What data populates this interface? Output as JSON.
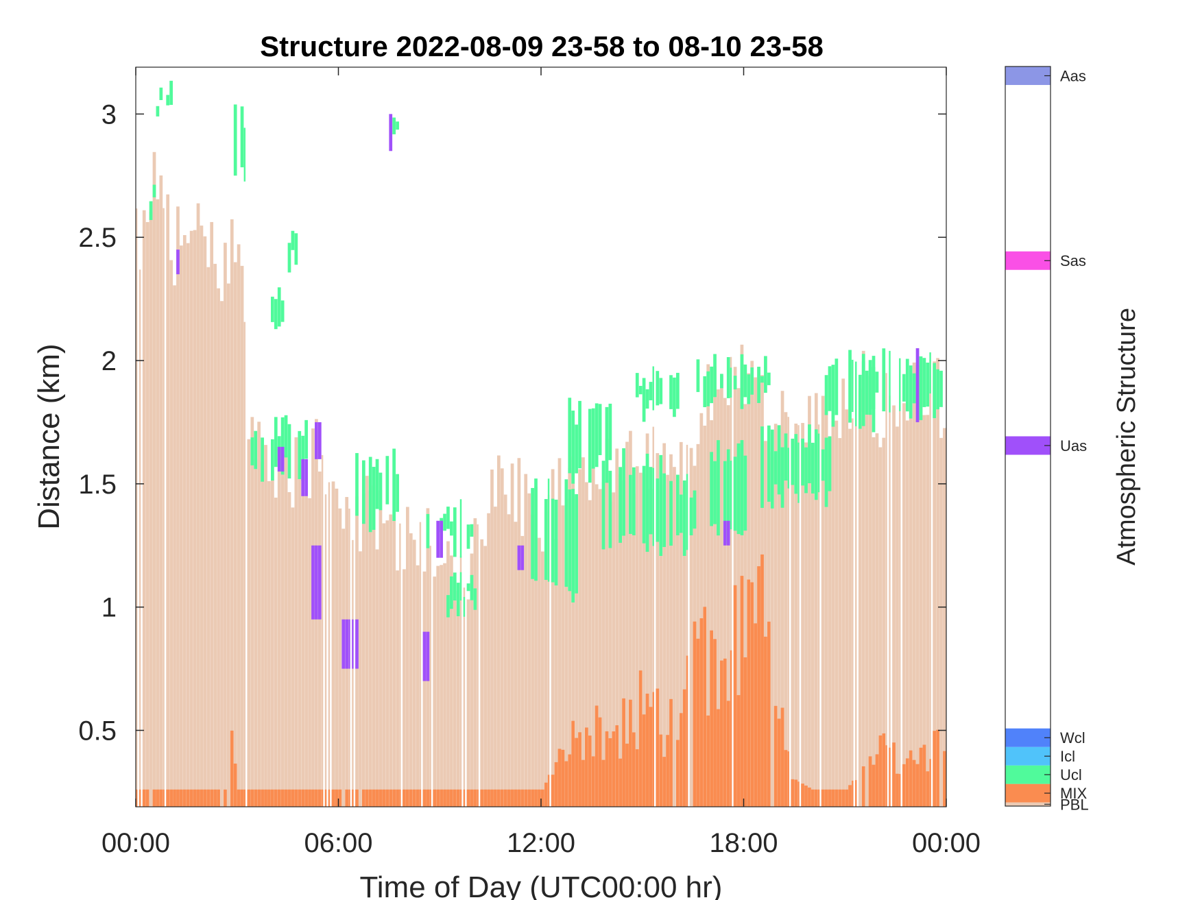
{
  "chart_data": {
    "type": "heatmap",
    "title": "Structure 2022-08-09 23-58 to 08-10 23-58",
    "xlabel": "Time of Day (UTC00:00 hr)",
    "ylabel": "Distance (km)",
    "colorbar_label": "Atmospheric Structure",
    "xlim_hours": [
      0,
      24
    ],
    "ylim_km": [
      0.19,
      3.19
    ],
    "x_ticks": [
      {
        "value": 0,
        "label": "00:00"
      },
      {
        "value": 6,
        "label": "06:00"
      },
      {
        "value": 12,
        "label": "12:00"
      },
      {
        "value": 18,
        "label": "18:00"
      },
      {
        "value": 24,
        "label": "00:00"
      }
    ],
    "y_ticks": [
      {
        "value": 0.5,
        "label": "0.5"
      },
      {
        "value": 1,
        "label": "1"
      },
      {
        "value": 1.5,
        "label": "1.5"
      },
      {
        "value": 2,
        "label": "2"
      },
      {
        "value": 2.5,
        "label": "2.5"
      },
      {
        "value": 3,
        "label": "3"
      }
    ],
    "categories": [
      {
        "label": "PBL",
        "color": "#ebcab4"
      },
      {
        "label": "MIX",
        "color": "#fa8c50"
      },
      {
        "label": "Ucl",
        "color": "#50fa9b"
      },
      {
        "label": "Icl",
        "color": "#50c3fa"
      },
      {
        "label": "Wcl",
        "color": "#5082fa"
      },
      {
        "label": "Uas",
        "color": "#a050fa"
      },
      {
        "label": "Sas",
        "color": "#fa50e6"
      },
      {
        "label": "Aas",
        "color": "#8c96e6"
      }
    ],
    "colorbar_scale": [
      0,
      40
    ],
    "colorbar_bands": [
      {
        "label": "PBL",
        "from": 0,
        "to": 0.2
      },
      {
        "label": "MIX",
        "from": 0.2,
        "to": 1.2
      },
      {
        "label": "Ucl",
        "from": 1.2,
        "to": 2.2
      },
      {
        "label": "Icl",
        "from": 2.2,
        "to": 3.2
      },
      {
        "label": "Wcl",
        "from": 3.2,
        "to": 4.2
      },
      {
        "label": "Uas",
        "from": 19,
        "to": 20
      },
      {
        "label": "Sas",
        "from": 29,
        "to": 30
      },
      {
        "label": "Aas",
        "from": 39,
        "to": 40
      }
    ],
    "pbl_top_km": [
      [
        0,
        2.5
      ],
      [
        0.5,
        2.7
      ],
      [
        1.0,
        2.45
      ],
      [
        1.5,
        2.5
      ],
      [
        2.0,
        2.5
      ],
      [
        2.5,
        2.4
      ],
      [
        3.0,
        2.55
      ],
      [
        3.3,
        1.75
      ],
      [
        3.7,
        1.65
      ],
      [
        4.2,
        1.6
      ],
      [
        4.7,
        1.55
      ],
      [
        5.2,
        1.62
      ],
      [
        5.6,
        1.55
      ],
      [
        6.0,
        1.5
      ],
      [
        6.5,
        1.35
      ],
      [
        7.0,
        1.4
      ],
      [
        7.5,
        1.32
      ],
      [
        8.0,
        1.28
      ],
      [
        8.5,
        1.25
      ],
      [
        9.0,
        1.2
      ],
      [
        9.5,
        1.1
      ],
      [
        10.0,
        1.2
      ],
      [
        10.5,
        1.45
      ],
      [
        11.0,
        1.55
      ],
      [
        11.5,
        1.4
      ],
      [
        12.0,
        1.3
      ],
      [
        12.5,
        1.45
      ],
      [
        13.0,
        1.55
      ],
      [
        13.5,
        1.62
      ],
      [
        14.0,
        1.6
      ],
      [
        14.5,
        1.55
      ],
      [
        15.0,
        1.65
      ],
      [
        15.5,
        1.55
      ],
      [
        16.0,
        1.5
      ],
      [
        16.5,
        1.7
      ],
      [
        17.0,
        1.85
      ],
      [
        17.5,
        1.95
      ],
      [
        18.0,
        1.9
      ],
      [
        18.5,
        1.8
      ],
      [
        19.0,
        1.75
      ],
      [
        19.5,
        1.7
      ],
      [
        20.0,
        1.75
      ],
      [
        20.5,
        1.85
      ],
      [
        21.0,
        1.8
      ],
      [
        21.5,
        1.9
      ],
      [
        22.0,
        1.8
      ],
      [
        22.5,
        1.85
      ],
      [
        23.0,
        1.9
      ],
      [
        23.5,
        1.85
      ],
      [
        24.0,
        1.85
      ]
    ],
    "mix_top_km": [
      [
        0,
        0.26
      ],
      [
        2.6,
        0.26
      ],
      [
        2.7,
        0.55
      ],
      [
        3.0,
        0.26
      ],
      [
        12.0,
        0.26
      ],
      [
        12.5,
        0.4
      ],
      [
        13.0,
        0.5
      ],
      [
        13.5,
        0.55
      ],
      [
        14.0,
        0.45
      ],
      [
        14.5,
        0.6
      ],
      [
        15.0,
        0.7
      ],
      [
        15.5,
        0.55
      ],
      [
        16.0,
        0.6
      ],
      [
        16.5,
        0.8
      ],
      [
        17.0,
        1.0
      ],
      [
        17.5,
        1.05
      ],
      [
        18.0,
        0.9
      ],
      [
        18.5,
        1.0
      ],
      [
        19.0,
        0.6
      ],
      [
        19.5,
        0.3
      ],
      [
        20.0,
        0.26
      ],
      [
        21.0,
        0.26
      ],
      [
        21.5,
        0.35
      ],
      [
        22.0,
        0.45
      ],
      [
        22.5,
        0.4
      ],
      [
        23.0,
        0.4
      ],
      [
        23.5,
        0.45
      ],
      [
        24.0,
        0.5
      ]
    ],
    "ucl_spans": [
      {
        "from_h": 0.6,
        "to_h": 1.1,
        "base_km": 2.95,
        "top_km": 3.15
      },
      {
        "from_h": 0.3,
        "to_h": 0.6,
        "base_km": 2.55,
        "top_km": 2.75
      },
      {
        "from_h": 2.9,
        "to_h": 3.2,
        "base_km": 2.7,
        "top_km": 3.05
      },
      {
        "from_h": 4.5,
        "to_h": 4.7,
        "base_km": 2.35,
        "top_km": 2.55
      },
      {
        "from_h": 4.0,
        "to_h": 4.3,
        "base_km": 2.05,
        "top_km": 2.3
      },
      {
        "from_h": 3.4,
        "to_h": 5.0,
        "base_km": 1.5,
        "top_km": 1.8
      },
      {
        "from_h": 6.5,
        "to_h": 7.8,
        "base_km": 1.3,
        "top_km": 1.65
      },
      {
        "from_h": 7.5,
        "to_h": 7.7,
        "base_km": 2.85,
        "top_km": 3.0
      },
      {
        "from_h": 8.6,
        "to_h": 9.9,
        "base_km": 1.2,
        "top_km": 1.45
      },
      {
        "from_h": 9.2,
        "to_h": 10.0,
        "base_km": 0.95,
        "top_km": 1.15
      },
      {
        "from_h": 11.7,
        "to_h": 13.2,
        "base_km": 1.0,
        "top_km": 1.55
      },
      {
        "from_h": 12.8,
        "to_h": 14.0,
        "base_km": 1.5,
        "top_km": 1.85
      },
      {
        "from_h": 13.8,
        "to_h": 15.5,
        "base_km": 1.2,
        "top_km": 1.65
      },
      {
        "from_h": 14.8,
        "to_h": 16.0,
        "base_km": 1.75,
        "top_km": 2.0
      },
      {
        "from_h": 15.4,
        "to_h": 16.5,
        "base_km": 1.2,
        "top_km": 1.55
      },
      {
        "from_h": 16.5,
        "to_h": 18.7,
        "base_km": 1.8,
        "top_km": 2.05
      },
      {
        "from_h": 17.0,
        "to_h": 18.3,
        "base_km": 1.25,
        "top_km": 1.7
      },
      {
        "from_h": 18.5,
        "to_h": 20.5,
        "base_km": 1.4,
        "top_km": 1.75
      },
      {
        "from_h": 20.4,
        "to_h": 21.8,
        "base_km": 1.7,
        "top_km": 2.05
      },
      {
        "from_h": 21.5,
        "to_h": 23.9,
        "base_km": 1.75,
        "top_km": 2.05
      }
    ],
    "uas_spans": [
      {
        "from_h": 1.15,
        "to_h": 1.25,
        "base_km": 2.35,
        "top_km": 2.45
      },
      {
        "from_h": 4.2,
        "to_h": 4.3,
        "base_km": 1.55,
        "top_km": 1.65
      },
      {
        "from_h": 4.9,
        "to_h": 5.0,
        "base_km": 1.45,
        "top_km": 1.6
      },
      {
        "from_h": 5.3,
        "to_h": 5.45,
        "base_km": 1.6,
        "top_km": 1.75
      },
      {
        "from_h": 5.2,
        "to_h": 5.4,
        "base_km": 0.95,
        "top_km": 1.25
      },
      {
        "from_h": 6.1,
        "to_h": 6.55,
        "base_km": 0.75,
        "top_km": 0.95
      },
      {
        "from_h": 7.5,
        "to_h": 7.6,
        "base_km": 2.85,
        "top_km": 3.0
      },
      {
        "from_h": 8.5,
        "to_h": 8.6,
        "base_km": 0.7,
        "top_km": 0.9
      },
      {
        "from_h": 8.9,
        "to_h": 9.0,
        "base_km": 1.2,
        "top_km": 1.35
      },
      {
        "from_h": 11.3,
        "to_h": 11.45,
        "base_km": 1.15,
        "top_km": 1.25
      },
      {
        "from_h": 17.4,
        "to_h": 17.5,
        "base_km": 1.25,
        "top_km": 1.35
      },
      {
        "from_h": 23.1,
        "to_h": 23.2,
        "base_km": 1.75,
        "top_km": 2.05
      }
    ]
  }
}
